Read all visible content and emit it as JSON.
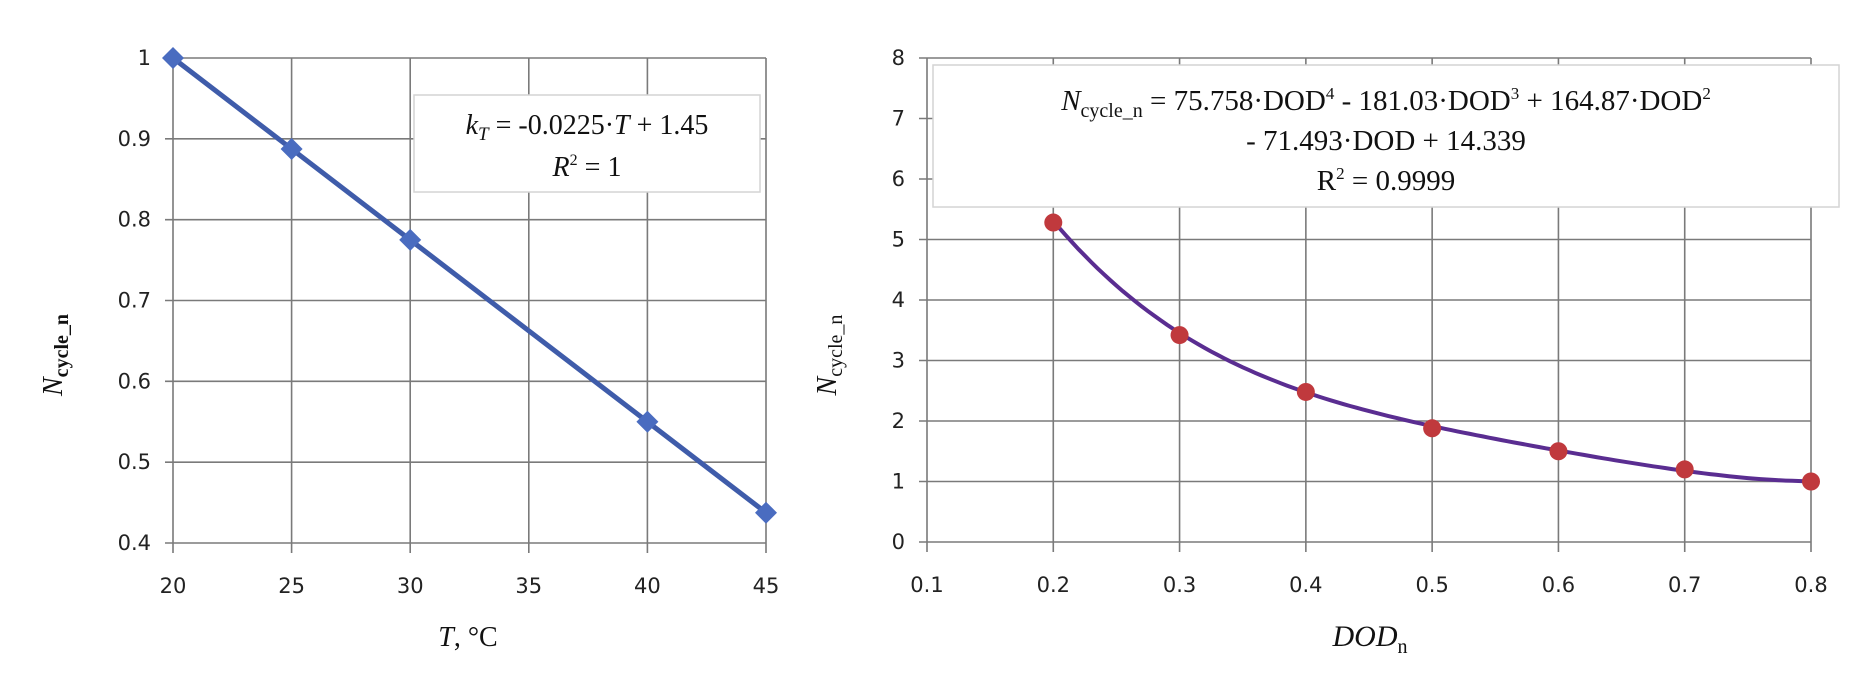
{
  "chart_data": [
    {
      "type": "line",
      "x": [
        20,
        25,
        30,
        40,
        45
      ],
      "y": [
        1,
        0.8875,
        0.775,
        0.55,
        0.4375
      ],
      "xticks": [
        "20",
        "25",
        "30",
        "35",
        "40",
        "45"
      ],
      "yticks": [
        "0.4",
        "0.5",
        "0.6",
        "0.7",
        "0.8",
        "0.9",
        "1"
      ],
      "xlim": [
        20,
        45
      ],
      "ylim": [
        0.4,
        1
      ],
      "xlabel": {
        "main": "T",
        "rest": ", °C"
      },
      "ylabel": {
        "main": "N",
        "sub": "cycle_n"
      },
      "grid": true,
      "series_color": "#3f5caa",
      "marker": "diamond",
      "annotation": {
        "line1_k": "k",
        "line1_sub": "T",
        "line1_rest": " = -0.0225·",
        "line1_T": "T",
        "line1_end": " + 1.45",
        "line2_R": "R",
        "line2_sup": "2",
        "line2_rest": " = 1"
      }
    },
    {
      "type": "line",
      "x": [
        0.2,
        0.3,
        0.4,
        0.5,
        0.6,
        0.7,
        0.8
      ],
      "y": [
        5.28,
        3.42,
        2.48,
        1.88,
        1.5,
        1.2,
        1.0
      ],
      "xticks": [
        "0.1",
        "0.2",
        "0.3",
        "0.4",
        "0.5",
        "0.6",
        "0.7",
        "0.8"
      ],
      "yticks": [
        "0",
        "1",
        "2",
        "3",
        "4",
        "5",
        "6",
        "7",
        "8"
      ],
      "xlim": [
        0.1,
        0.8
      ],
      "ylim": [
        0,
        8
      ],
      "xlabel": {
        "main": "DOD",
        "sub": "n"
      },
      "ylabel": {
        "main": "N",
        "sub": "cycle_n"
      },
      "grid": true,
      "trendline": {
        "type": "polynomial",
        "coefficients": [
          75.758,
          -181.03,
          164.87,
          -71.493,
          14.339
        ],
        "r2": 0.9999,
        "color": "#5a2d91"
      },
      "marker_color": "#c0393d",
      "annotation": {
        "N": "N",
        "N_sub": "cycle_n",
        "t1": " = 75.758·DOD",
        "s1": "4",
        "t2": " - 181.03·DOD",
        "s2": "3",
        "t3": " + 164.87·DOD",
        "s3": "2",
        "line2": "- 71.493·DOD + 14.339",
        "line3_R": "R",
        "line3_sup": "2",
        "line3_rest": " = 0.9999"
      }
    }
  ]
}
